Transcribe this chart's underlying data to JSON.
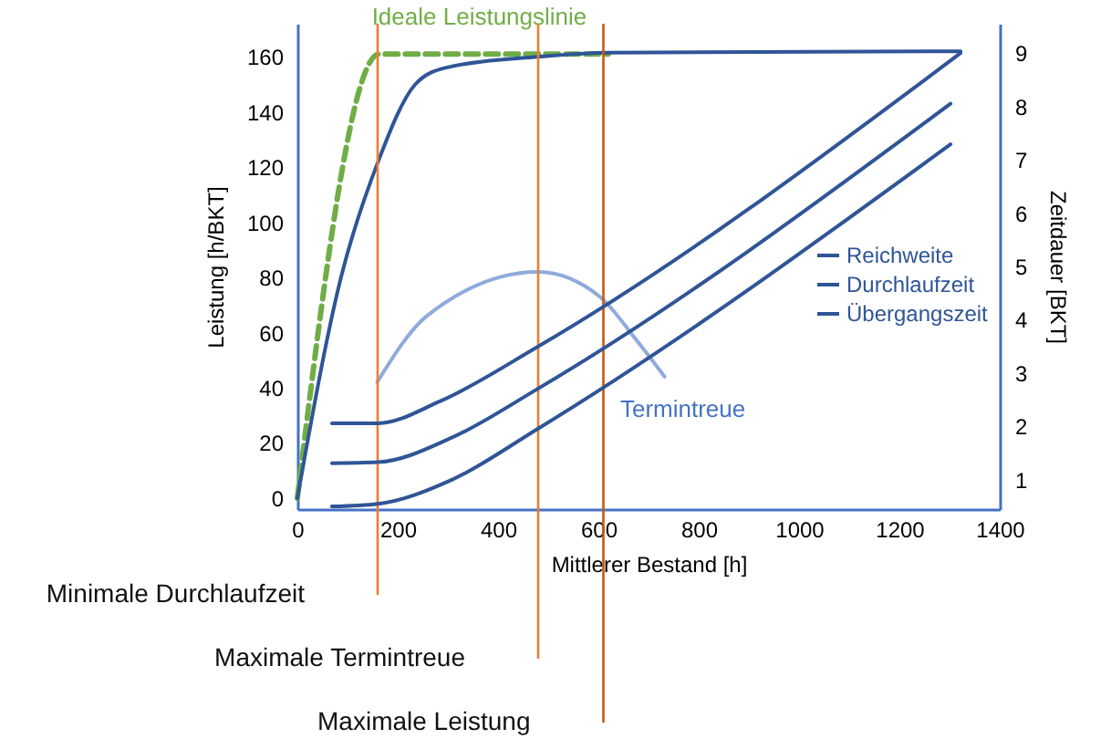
{
  "chart_data": {
    "type": "line",
    "xlabel": "Mittlerer Bestand [h]",
    "ylabel": "Leistung [h/BKT]",
    "y2label": "Zeitdauer [BKT]",
    "xlim": [
      0,
      1400
    ],
    "xticks": [
      0,
      200,
      400,
      600,
      800,
      1000,
      1200,
      1400
    ],
    "legend": "right",
    "ylim": [
      -4,
      172
    ],
    "yticks": [
      0,
      20,
      40,
      60,
      80,
      100,
      120,
      140,
      160
    ],
    "y2lim": [
      0.45,
      9.55
    ],
    "y2ticks": [
      1,
      2,
      3,
      4,
      5,
      6,
      7,
      8,
      9
    ],
    "series": [
      {
        "name": "Ideale Leistungslinie",
        "color": "#70ad47",
        "line_style": "dashed",
        "x": [
          0,
          163,
          620
        ],
        "values": [
          0,
          161,
          161
        ]
      },
      {
        "color": "#2f5597",
        "x": [
          0,
          87,
          161,
          235,
          295,
          480,
          620,
          1322
        ],
        "values": [
          0,
          80,
          122,
          150,
          156,
          160,
          161.5,
          162
        ]
      },
      {
        "name": "Termintreue",
        "color": "#8faadc",
        "x": [
          159,
          258,
          480,
          603,
          677,
          732
        ],
        "values": [
          42,
          66,
          82,
          73,
          57,
          44
        ]
      },
      {
        "name": "Reichweite",
        "color": "#2f5597",
        "axis": "y2",
        "x": [
          69,
          161,
          284,
          480,
          1322
        ],
        "values": [
          2.06,
          2.06,
          2.47,
          3.5,
          9
        ]
      },
      {
        "name": "Durchlaufzeit",
        "color": "#2f5597",
        "axis": "y2",
        "x": [
          69,
          161,
          308,
          480,
          1302
        ],
        "values": [
          1.31,
          1.33,
          1.79,
          2.71,
          8.05
        ]
      },
      {
        "name": "Übergangszeit",
        "color": "#2f5597",
        "axis": "y2",
        "x": [
          69,
          161,
          308,
          480,
          1302
        ],
        "values": [
          0.5,
          0.55,
          1.0,
          1.96,
          7.29
        ]
      }
    ],
    "ref_lines": [
      {
        "axis": "x",
        "value": 160,
        "label": "Minimale Durchlaufzeit",
        "color": "#ed7d31"
      },
      {
        "axis": "x",
        "value": 480,
        "label": "Maximale Termintreue",
        "color": "#ed7d31"
      },
      {
        "axis": "x",
        "value": 610,
        "label": "Maximale Leistung",
        "color": "#c55a11"
      }
    ]
  }
}
